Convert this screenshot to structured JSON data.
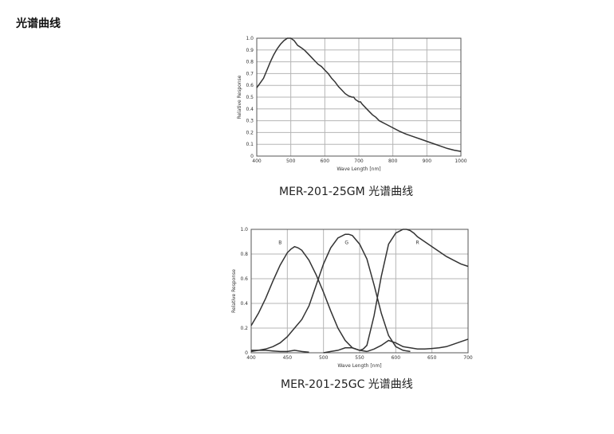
{
  "page": {
    "title": "光谱曲线"
  },
  "figures": [
    {
      "caption": "MER-201-25GM 光谱曲线"
    },
    {
      "caption": "MER-201-25GC 光谱曲线"
    }
  ],
  "chart_data": [
    {
      "type": "line",
      "title": "",
      "xlabel": "Wave Length [nm]",
      "ylabel": "Relative Response",
      "xlim": [
        400,
        1000
      ],
      "ylim": [
        0,
        1.0
      ],
      "xticks": [
        400,
        500,
        600,
        700,
        800,
        900,
        1000
      ],
      "yticks": [
        0,
        0.1,
        0.2,
        0.3,
        0.4,
        0.5,
        0.6,
        0.7,
        0.8,
        0.9,
        1.0
      ],
      "ytick_labels": [
        "0",
        "0.1",
        "0.2",
        "0.3",
        "0.4",
        "0.5",
        "0.6",
        "0.7",
        "0.8",
        "0.9",
        "1.0"
      ],
      "grid": true,
      "series": [
        {
          "x": [
            400,
            410,
            420,
            430,
            440,
            450,
            460,
            470,
            480,
            490,
            500,
            510,
            520,
            530,
            540,
            550,
            560,
            570,
            580,
            590,
            600,
            610,
            620,
            630,
            640,
            650,
            660,
            670,
            680,
            685,
            690,
            695,
            700,
            705,
            710,
            720,
            730,
            740,
            750,
            760,
            780,
            800,
            820,
            840,
            860,
            880,
            900,
            920,
            940,
            960,
            980,
            1000
          ],
          "y": [
            0.58,
            0.62,
            0.66,
            0.73,
            0.8,
            0.86,
            0.91,
            0.95,
            0.98,
            1.0,
            1.0,
            0.98,
            0.94,
            0.92,
            0.9,
            0.87,
            0.84,
            0.81,
            0.78,
            0.76,
            0.73,
            0.7,
            0.66,
            0.63,
            0.59,
            0.56,
            0.53,
            0.51,
            0.5,
            0.5,
            0.48,
            0.47,
            0.46,
            0.46,
            0.44,
            0.41,
            0.38,
            0.35,
            0.33,
            0.3,
            0.27,
            0.24,
            0.21,
            0.185,
            0.165,
            0.145,
            0.125,
            0.105,
            0.085,
            0.065,
            0.05,
            0.04
          ]
        }
      ]
    },
    {
      "type": "line",
      "title": "",
      "xlabel": "Wave Length [nm]",
      "ylabel": "Relative Response",
      "xlim": [
        400,
        700
      ],
      "ylim": [
        0,
        1.0
      ],
      "xticks": [
        400,
        450,
        500,
        550,
        600,
        650,
        700
      ],
      "yticks": [
        0,
        0.2,
        0.4,
        0.6,
        0.8,
        1.0
      ],
      "ytick_labels": [
        "0",
        "0.2",
        "0.4",
        "0.6",
        "0.8",
        "1.0"
      ],
      "grid": true,
      "series": [
        {
          "name": "B",
          "label_at": [
            440,
            0.88
          ],
          "x": [
            400,
            410,
            420,
            430,
            440,
            450,
            455,
            460,
            465,
            470,
            480,
            490,
            500,
            510,
            520,
            530,
            540,
            550,
            560
          ],
          "y": [
            0.22,
            0.32,
            0.44,
            0.58,
            0.71,
            0.81,
            0.84,
            0.86,
            0.85,
            0.83,
            0.75,
            0.63,
            0.49,
            0.34,
            0.2,
            0.1,
            0.04,
            0.02,
            0.01
          ]
        },
        {
          "x": [
            400,
            410,
            420,
            430,
            440,
            450,
            460,
            470,
            480
          ],
          "y": [
            0.02,
            0.02,
            0.02,
            0.015,
            0.01,
            0.01,
            0.02,
            0.01,
            0.005
          ]
        },
        {
          "name": "G",
          "label_at": [
            532,
            0.88
          ],
          "x": [
            400,
            410,
            420,
            430,
            440,
            450,
            460,
            470,
            480,
            490,
            500,
            510,
            520,
            530,
            535,
            540,
            550,
            560,
            570,
            580,
            590,
            600,
            610,
            620
          ],
          "y": [
            0.01,
            0.02,
            0.03,
            0.05,
            0.08,
            0.13,
            0.2,
            0.27,
            0.38,
            0.55,
            0.72,
            0.85,
            0.93,
            0.96,
            0.96,
            0.95,
            0.88,
            0.76,
            0.55,
            0.32,
            0.14,
            0.05,
            0.02,
            0.01
          ]
        },
        {
          "name": "R",
          "label_at": [
            630,
            0.88
          ],
          "x": [
            500,
            510,
            520,
            530,
            540,
            550,
            555,
            560,
            570,
            580,
            590,
            600,
            610,
            615,
            620,
            625,
            630,
            640,
            650,
            660,
            670,
            680,
            690,
            700
          ],
          "y": [
            0.0,
            0.01,
            0.02,
            0.04,
            0.04,
            0.02,
            0.03,
            0.06,
            0.3,
            0.62,
            0.88,
            0.97,
            1.0,
            1.0,
            0.99,
            0.97,
            0.94,
            0.9,
            0.86,
            0.82,
            0.78,
            0.75,
            0.72,
            0.7
          ]
        },
        {
          "x": [
            560,
            570,
            580,
            590,
            600,
            610,
            620,
            630,
            640,
            650,
            660,
            670,
            680,
            690,
            700
          ],
          "y": [
            0.01,
            0.03,
            0.06,
            0.1,
            0.08,
            0.05,
            0.04,
            0.03,
            0.03,
            0.035,
            0.04,
            0.05,
            0.07,
            0.09,
            0.11
          ]
        }
      ]
    }
  ]
}
